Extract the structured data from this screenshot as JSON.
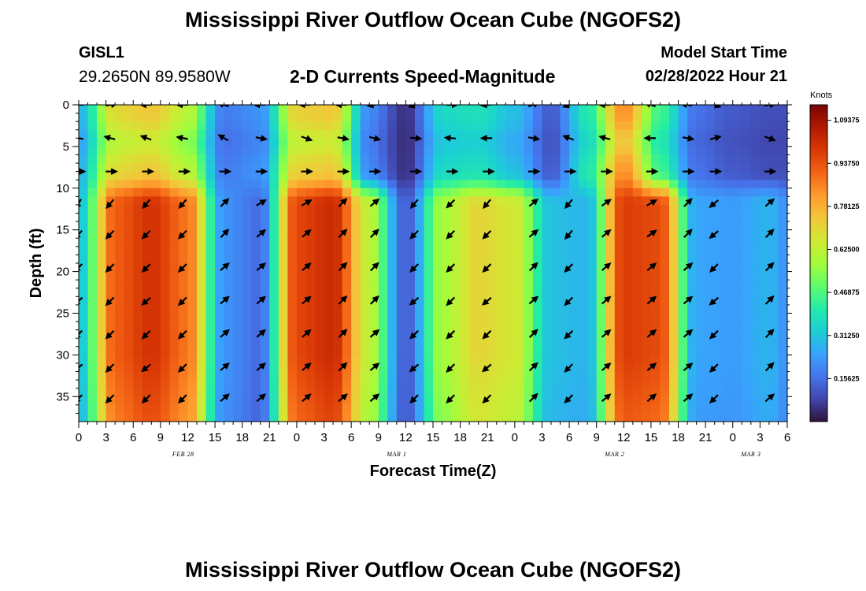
{
  "header": {
    "title": "Mississippi River Outflow Ocean Cube (NGOFS2)",
    "station_id": "GISL1",
    "coordinates": "29.2650N  89.9580W",
    "plot_title": "2-D Currents Speed-Magnitude",
    "model_start_label": "Model Start Time",
    "model_start_value": "02/28/2022 Hour 21"
  },
  "footer": {
    "title": "Mississippi River Outflow Ocean Cube (NGOFS2)"
  },
  "colors": {
    "background": "#ffffff",
    "text": "#000000",
    "colormap": [
      "#30123b",
      "#4145ab",
      "#4675ed",
      "#39a2fc",
      "#1bcfd4",
      "#24eca6",
      "#61fc6c",
      "#a4fc3b",
      "#d1e834",
      "#f3c63a",
      "#fe9b2d",
      "#f36315",
      "#d93806",
      "#b11901",
      "#7a0403"
    ]
  },
  "chart_data": {
    "type": "heatmap",
    "title": "2-D Currents Speed-Magnitude",
    "xlabel": "Forecast Time(Z)",
    "ylabel": "Depth (ft)",
    "xlim": [
      0,
      78
    ],
    "ylim": [
      38,
      0
    ],
    "x_tick_labels": [
      "0",
      "3",
      "6",
      "9",
      "12",
      "15",
      "18",
      "21",
      "0",
      "3",
      "6",
      "9",
      "12",
      "15",
      "18",
      "21",
      "0",
      "3",
      "6",
      "9",
      "12",
      "15",
      "18",
      "21",
      "0",
      "3",
      "6"
    ],
    "y_ticks": [
      0,
      5,
      10,
      15,
      20,
      25,
      30,
      35
    ],
    "date_labels": [
      {
        "text": "FEB 28",
        "hour": 11.5
      },
      {
        "text": "MAR 1",
        "hour": 35
      },
      {
        "text": "MAR 2",
        "hour": 59
      },
      {
        "text": "MAR 3",
        "hour": 74
      }
    ],
    "colorbar": {
      "unit": "Knots",
      "min": 0,
      "max": 1.15,
      "tick_values": [
        0.15625,
        0.3125,
        0.46875,
        0.625,
        0.78125,
        0.9375,
        1.09375
      ],
      "tick_labels": [
        "0.15625",
        "0.31250",
        "0.46875",
        "0.62500",
        "0.78125",
        "0.93750",
        "1.09375"
      ]
    },
    "time_hours": [
      0,
      4,
      8,
      12,
      16,
      20,
      24,
      28,
      32,
      36,
      40,
      44,
      48,
      52,
      56,
      60,
      64,
      68,
      72,
      76,
      78
    ],
    "deep_layer_depth_ft": [
      12,
      38
    ],
    "deep_layer_speed_knots": [
      0.3,
      0.92,
      1.0,
      0.88,
      0.22,
      0.15,
      0.96,
      1.02,
      0.62,
      0.12,
      0.58,
      0.7,
      0.66,
      0.3,
      0.28,
      0.98,
      0.95,
      0.25,
      0.24,
      0.28,
      0.22
    ],
    "surface_layer_depth_ft": [
      0,
      10
    ],
    "surface_layer_speed_knots": [
      0.28,
      0.7,
      0.74,
      0.62,
      0.18,
      0.22,
      0.72,
      0.74,
      0.2,
      0.05,
      0.36,
      0.38,
      0.3,
      0.12,
      0.4,
      0.85,
      0.45,
      0.16,
      0.12,
      0.1,
      0.1
    ],
    "vector_columns_hours": [
      0,
      3.5,
      7.5,
      11.5,
      16,
      20,
      25,
      29,
      32.5,
      37,
      41,
      45,
      50,
      54,
      58,
      63,
      67,
      70,
      76
    ],
    "vector_rows_depth_ft": [
      0,
      4,
      8,
      11.8,
      15.5,
      19.5,
      23.5,
      27.5,
      31.5,
      35.2
    ],
    "vector_directions_deg": [
      [
        180,
        350,
        180,
        180,
        200,
        180,
        180,
        180,
        170,
        160,
        0,
        175,
        340,
        160,
        180,
        200,
        190,
        20,
        350
      ],
      [
        190,
        195,
        200,
        190,
        210,
        10,
        20,
        10,
        15,
        5,
        185,
        180,
        10,
        200,
        195,
        180,
        10,
        345,
        20
      ],
      [
        0,
        0,
        0,
        0,
        0,
        0,
        0,
        0,
        0,
        0,
        0,
        0,
        0,
        0,
        0,
        0,
        0,
        0,
        0
      ],
      [
        120,
        130,
        130,
        130,
        315,
        330,
        330,
        315,
        320,
        130,
        135,
        130,
        320,
        130,
        325,
        330,
        315,
        140,
        320
      ],
      [
        135,
        135,
        135,
        135,
        315,
        320,
        320,
        315,
        315,
        135,
        135,
        135,
        320,
        130,
        320,
        325,
        315,
        140,
        315
      ],
      [
        135,
        135,
        135,
        135,
        320,
        320,
        320,
        315,
        315,
        135,
        135,
        135,
        315,
        135,
        320,
        320,
        320,
        135,
        315
      ],
      [
        140,
        135,
        140,
        135,
        320,
        320,
        320,
        315,
        315,
        140,
        135,
        140,
        320,
        135,
        320,
        320,
        320,
        140,
        315
      ],
      [
        135,
        135,
        135,
        135,
        320,
        320,
        320,
        315,
        320,
        135,
        135,
        135,
        315,
        135,
        320,
        320,
        320,
        135,
        315
      ],
      [
        140,
        135,
        140,
        135,
        320,
        320,
        320,
        315,
        320,
        140,
        135,
        140,
        315,
        135,
        320,
        320,
        320,
        135,
        315
      ],
      [
        135,
        135,
        135,
        135,
        320,
        320,
        320,
        320,
        320,
        135,
        135,
        135,
        315,
        135,
        320,
        320,
        320,
        135,
        320
      ]
    ]
  }
}
